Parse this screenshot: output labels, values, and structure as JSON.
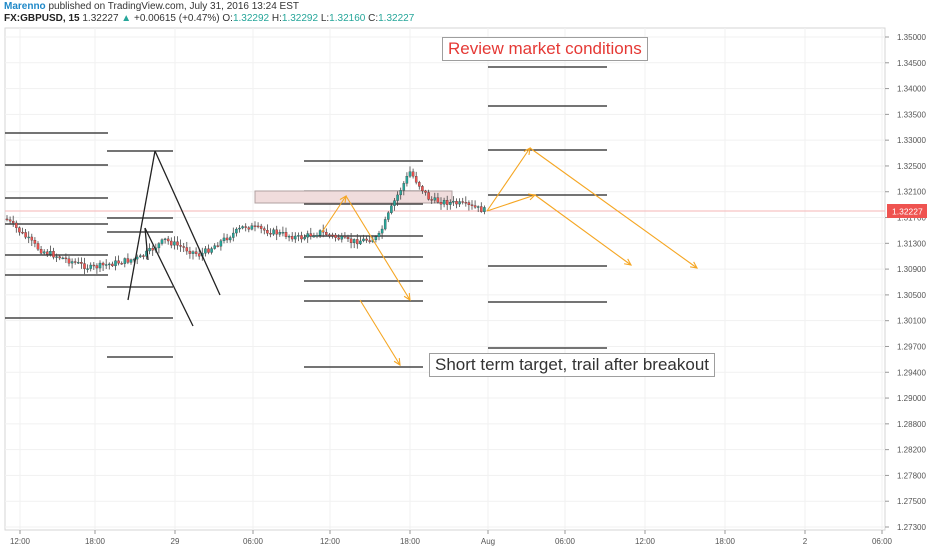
{
  "header": {
    "author": "Marenno",
    "published": "published on TradingView.com, July 31, 2016 13:24 EST",
    "symbol": "FX:GBPUSD, 15",
    "last": "1.32227",
    "change_arrow": "▲",
    "change": "+0.00615 (+0.47%)",
    "o_label": "O:",
    "o_value": "1.32292",
    "h_label": "H:",
    "h_value": "1.32292",
    "l_label": "L:",
    "l_value": "1.32160",
    "c_label": "C:",
    "c_value": "1.32227"
  },
  "annotations": {
    "review": "Review market conditions",
    "target": "Short term target, trail after breakout"
  },
  "colors": {
    "up": "#26a69a",
    "down": "#ef5350",
    "candle_wick": "#444444",
    "level_line": "#222222",
    "arrow": "#f5a623",
    "price_marker": "#ef5350",
    "zone_fill": "#f0dcdc",
    "zone_stroke": "#b0a0a0"
  },
  "chart_data": {
    "type": "candlestick",
    "symbol": "FX:GBPUSD",
    "timeframe": "15",
    "ylim": [
      1.2715,
      1.3515
    ],
    "yticks": [
      "1.35000",
      "1.34500",
      "1.34000",
      "1.33500",
      "1.33000",
      "1.32500",
      "1.32100",
      "1.31700",
      "1.31300",
      "1.30900",
      "1.30500",
      "1.30100",
      "1.29700",
      "1.29400",
      "1.29000",
      "1.28800",
      "1.28200",
      "1.27800",
      "1.27500",
      "1.27300"
    ],
    "xticks": [
      "12:00",
      "18:00",
      "29",
      "06:00",
      "12:00",
      "18:00",
      "Aug",
      "06:00",
      "12:00",
      "18:00",
      "2",
      "06:00"
    ],
    "last_price": "1.32227",
    "candles": []
  }
}
